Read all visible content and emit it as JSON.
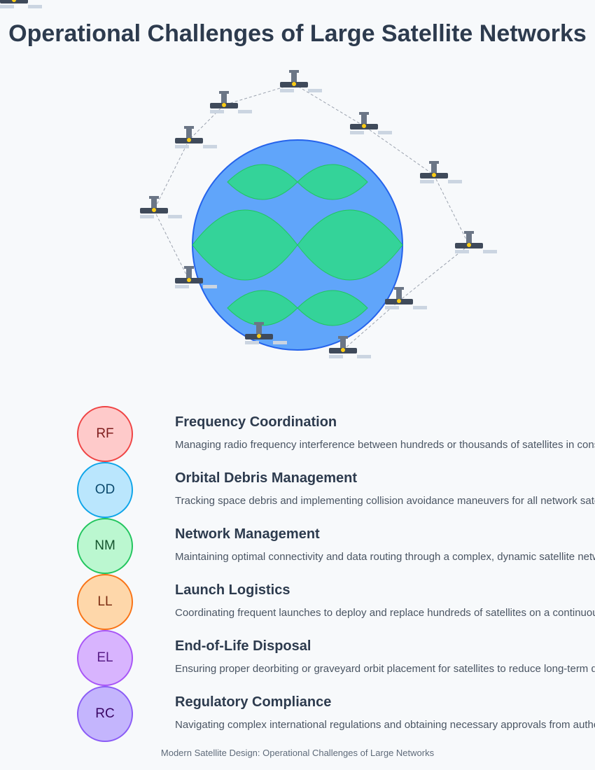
{
  "title": "Operational Challenges of Large Satellite Networks",
  "challenges": [
    {
      "abbr": "RF",
      "title": "Frequency Coordination",
      "desc": "Managing radio frequency interference between hundreds or thousands of satellites in constellation",
      "fill": "#fecaca",
      "stroke": "#ef4444",
      "text": "#7f1d1d"
    },
    {
      "abbr": "OD",
      "title": "Orbital Debris Management",
      "desc": "Tracking space debris and implementing collision avoidance maneuvers for all network satellites",
      "fill": "#bae6fd",
      "stroke": "#0ea5e9",
      "text": "#0c4a6e"
    },
    {
      "abbr": "NM",
      "title": "Network Management",
      "desc": "Maintaining optimal connectivity and data routing through a complex, dynamic satellite network",
      "fill": "#bbf7d0",
      "stroke": "#22c55e",
      "text": "#14532d"
    },
    {
      "abbr": "LL",
      "title": "Launch Logistics",
      "desc": "Coordinating frequent launches to deploy and replace hundreds of satellites on a continuous basis",
      "fill": "#fed7aa",
      "stroke": "#f97316",
      "text": "#7c2d12"
    },
    {
      "abbr": "EL",
      "title": "End-of-Life Disposal",
      "desc": "Ensuring proper deorbiting or graveyard orbit placement for satellites to reduce long-term debris",
      "fill": "#d8b4fe",
      "stroke": "#a855f7",
      "text": "#581c87"
    },
    {
      "abbr": "RC",
      "title": "Regulatory Compliance",
      "desc": "Navigating complex international regulations and obtaining necessary approvals from authorities",
      "fill": "#c4b5fd",
      "stroke": "#8b5cf6",
      "text": "#3b0764"
    }
  ],
  "footer": "Modern Satellite Design: Operational Challenges of Large Networks",
  "colors": {
    "earth": "#60a5fa",
    "earth_stroke": "#2563eb",
    "land": "#34d399",
    "satellite": "#3f4a5a",
    "panel": "#cbd5e1",
    "beacon": "#facc15"
  }
}
